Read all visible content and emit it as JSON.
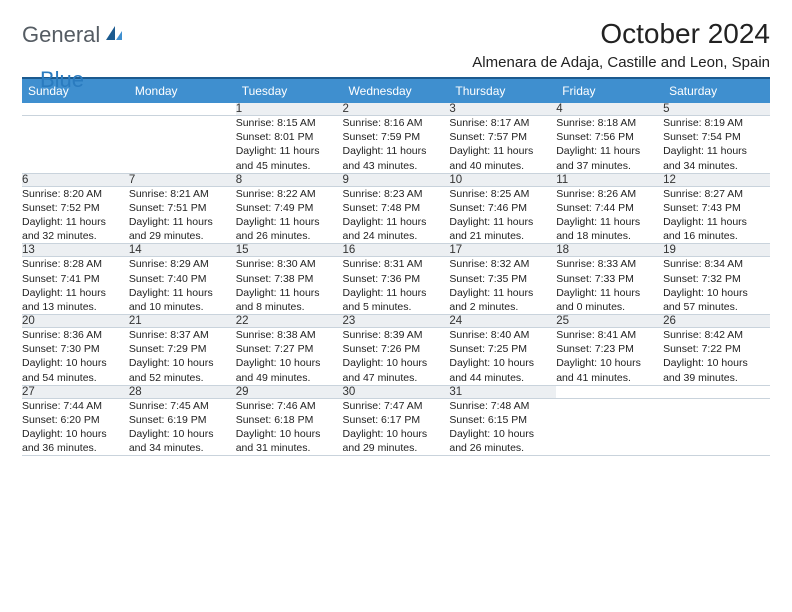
{
  "brand": {
    "part1": "General",
    "part2": "Blue"
  },
  "title": "October 2024",
  "location": "Almenara de Adaja, Castille and Leon, Spain",
  "colors": {
    "header_bg": "#3f8fcf",
    "divider": "#1b5a8f",
    "daynum_bg": "#eceff2",
    "row_border": "#c9d3dc",
    "logo_dark": "#555c63",
    "logo_blue": "#2a7bbf"
  },
  "weekdays": [
    "Sunday",
    "Monday",
    "Tuesday",
    "Wednesday",
    "Thursday",
    "Friday",
    "Saturday"
  ],
  "weeks": [
    {
      "nums": [
        "",
        "",
        "1",
        "2",
        "3",
        "4",
        "5"
      ],
      "cells": [
        null,
        null,
        {
          "sr": "Sunrise: 8:15 AM",
          "ss": "Sunset: 8:01 PM",
          "d1": "Daylight: 11 hours",
          "d2": "and 45 minutes."
        },
        {
          "sr": "Sunrise: 8:16 AM",
          "ss": "Sunset: 7:59 PM",
          "d1": "Daylight: 11 hours",
          "d2": "and 43 minutes."
        },
        {
          "sr": "Sunrise: 8:17 AM",
          "ss": "Sunset: 7:57 PM",
          "d1": "Daylight: 11 hours",
          "d2": "and 40 minutes."
        },
        {
          "sr": "Sunrise: 8:18 AM",
          "ss": "Sunset: 7:56 PM",
          "d1": "Daylight: 11 hours",
          "d2": "and 37 minutes."
        },
        {
          "sr": "Sunrise: 8:19 AM",
          "ss": "Sunset: 7:54 PM",
          "d1": "Daylight: 11 hours",
          "d2": "and 34 minutes."
        }
      ]
    },
    {
      "nums": [
        "6",
        "7",
        "8",
        "9",
        "10",
        "11",
        "12"
      ],
      "cells": [
        {
          "sr": "Sunrise: 8:20 AM",
          "ss": "Sunset: 7:52 PM",
          "d1": "Daylight: 11 hours",
          "d2": "and 32 minutes."
        },
        {
          "sr": "Sunrise: 8:21 AM",
          "ss": "Sunset: 7:51 PM",
          "d1": "Daylight: 11 hours",
          "d2": "and 29 minutes."
        },
        {
          "sr": "Sunrise: 8:22 AM",
          "ss": "Sunset: 7:49 PM",
          "d1": "Daylight: 11 hours",
          "d2": "and 26 minutes."
        },
        {
          "sr": "Sunrise: 8:23 AM",
          "ss": "Sunset: 7:48 PM",
          "d1": "Daylight: 11 hours",
          "d2": "and 24 minutes."
        },
        {
          "sr": "Sunrise: 8:25 AM",
          "ss": "Sunset: 7:46 PM",
          "d1": "Daylight: 11 hours",
          "d2": "and 21 minutes."
        },
        {
          "sr": "Sunrise: 8:26 AM",
          "ss": "Sunset: 7:44 PM",
          "d1": "Daylight: 11 hours",
          "d2": "and 18 minutes."
        },
        {
          "sr": "Sunrise: 8:27 AM",
          "ss": "Sunset: 7:43 PM",
          "d1": "Daylight: 11 hours",
          "d2": "and 16 minutes."
        }
      ]
    },
    {
      "nums": [
        "13",
        "14",
        "15",
        "16",
        "17",
        "18",
        "19"
      ],
      "cells": [
        {
          "sr": "Sunrise: 8:28 AM",
          "ss": "Sunset: 7:41 PM",
          "d1": "Daylight: 11 hours",
          "d2": "and 13 minutes."
        },
        {
          "sr": "Sunrise: 8:29 AM",
          "ss": "Sunset: 7:40 PM",
          "d1": "Daylight: 11 hours",
          "d2": "and 10 minutes."
        },
        {
          "sr": "Sunrise: 8:30 AM",
          "ss": "Sunset: 7:38 PM",
          "d1": "Daylight: 11 hours",
          "d2": "and 8 minutes."
        },
        {
          "sr": "Sunrise: 8:31 AM",
          "ss": "Sunset: 7:36 PM",
          "d1": "Daylight: 11 hours",
          "d2": "and 5 minutes."
        },
        {
          "sr": "Sunrise: 8:32 AM",
          "ss": "Sunset: 7:35 PM",
          "d1": "Daylight: 11 hours",
          "d2": "and 2 minutes."
        },
        {
          "sr": "Sunrise: 8:33 AM",
          "ss": "Sunset: 7:33 PM",
          "d1": "Daylight: 11 hours",
          "d2": "and 0 minutes."
        },
        {
          "sr": "Sunrise: 8:34 AM",
          "ss": "Sunset: 7:32 PM",
          "d1": "Daylight: 10 hours",
          "d2": "and 57 minutes."
        }
      ]
    },
    {
      "nums": [
        "20",
        "21",
        "22",
        "23",
        "24",
        "25",
        "26"
      ],
      "cells": [
        {
          "sr": "Sunrise: 8:36 AM",
          "ss": "Sunset: 7:30 PM",
          "d1": "Daylight: 10 hours",
          "d2": "and 54 minutes."
        },
        {
          "sr": "Sunrise: 8:37 AM",
          "ss": "Sunset: 7:29 PM",
          "d1": "Daylight: 10 hours",
          "d2": "and 52 minutes."
        },
        {
          "sr": "Sunrise: 8:38 AM",
          "ss": "Sunset: 7:27 PM",
          "d1": "Daylight: 10 hours",
          "d2": "and 49 minutes."
        },
        {
          "sr": "Sunrise: 8:39 AM",
          "ss": "Sunset: 7:26 PM",
          "d1": "Daylight: 10 hours",
          "d2": "and 47 minutes."
        },
        {
          "sr": "Sunrise: 8:40 AM",
          "ss": "Sunset: 7:25 PM",
          "d1": "Daylight: 10 hours",
          "d2": "and 44 minutes."
        },
        {
          "sr": "Sunrise: 8:41 AM",
          "ss": "Sunset: 7:23 PM",
          "d1": "Daylight: 10 hours",
          "d2": "and 41 minutes."
        },
        {
          "sr": "Sunrise: 8:42 AM",
          "ss": "Sunset: 7:22 PM",
          "d1": "Daylight: 10 hours",
          "d2": "and 39 minutes."
        }
      ]
    },
    {
      "nums": [
        "27",
        "28",
        "29",
        "30",
        "31",
        "",
        ""
      ],
      "cells": [
        {
          "sr": "Sunrise: 7:44 AM",
          "ss": "Sunset: 6:20 PM",
          "d1": "Daylight: 10 hours",
          "d2": "and 36 minutes."
        },
        {
          "sr": "Sunrise: 7:45 AM",
          "ss": "Sunset: 6:19 PM",
          "d1": "Daylight: 10 hours",
          "d2": "and 34 minutes."
        },
        {
          "sr": "Sunrise: 7:46 AM",
          "ss": "Sunset: 6:18 PM",
          "d1": "Daylight: 10 hours",
          "d2": "and 31 minutes."
        },
        {
          "sr": "Sunrise: 7:47 AM",
          "ss": "Sunset: 6:17 PM",
          "d1": "Daylight: 10 hours",
          "d2": "and 29 minutes."
        },
        {
          "sr": "Sunrise: 7:48 AM",
          "ss": "Sunset: 6:15 PM",
          "d1": "Daylight: 10 hours",
          "d2": "and 26 minutes."
        },
        null,
        null
      ]
    }
  ]
}
